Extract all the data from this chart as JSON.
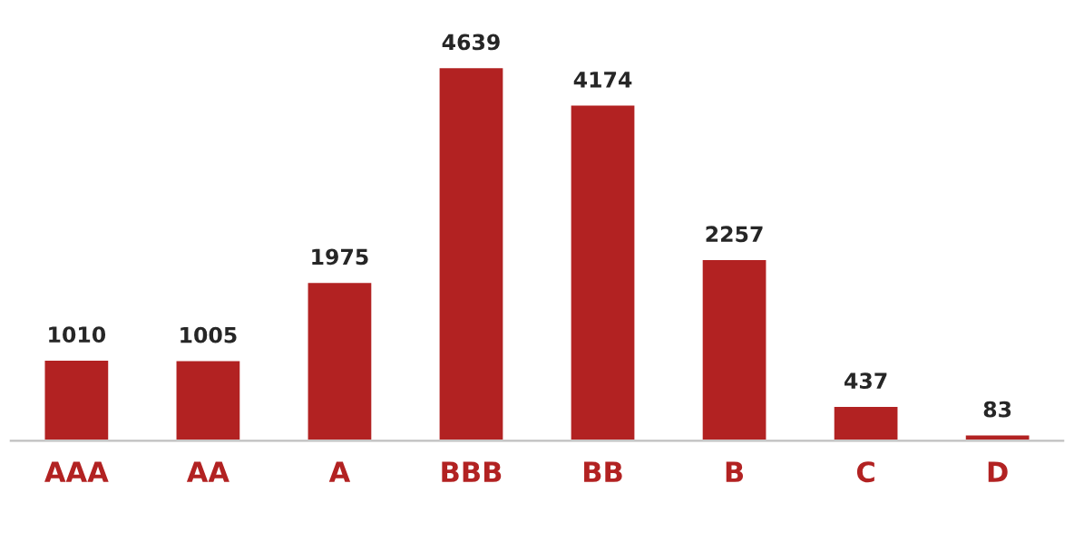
{
  "chart_data": {
    "type": "bar",
    "categories": [
      "AAA",
      "AA",
      "A",
      "BBB",
      "BB",
      "B",
      "C",
      "D"
    ],
    "values": [
      1010,
      1005,
      1975,
      4639,
      4174,
      2257,
      437,
      83
    ],
    "color": "#b22222",
    "data_labels": true,
    "grid": false,
    "legend": false
  }
}
